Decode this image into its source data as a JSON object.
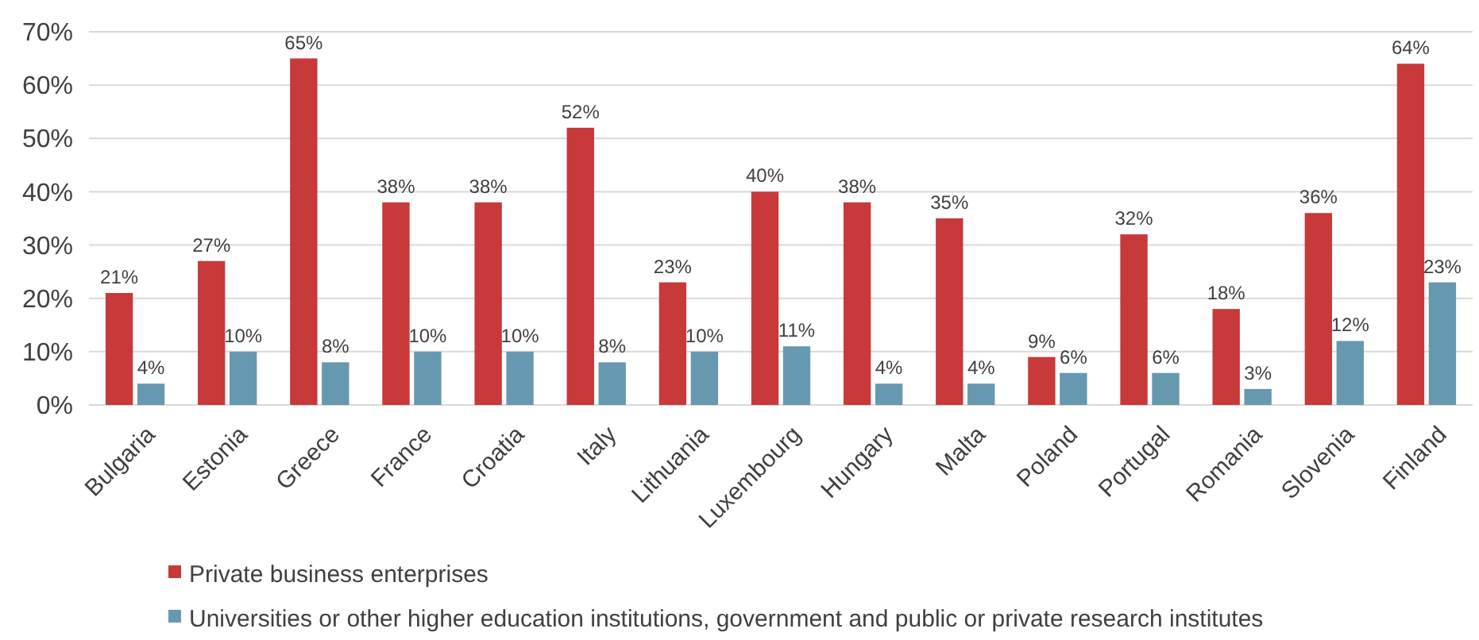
{
  "chart_data": {
    "type": "bar",
    "categories": [
      "Bulgaria",
      "Estonia",
      "Greece",
      "France",
      "Croatia",
      "Italy",
      "Lithuania",
      "Luxembourg",
      "Hungary",
      "Malta",
      "Poland",
      "Portugal",
      "Romania",
      "Slovenia",
      "Finland"
    ],
    "series": [
      {
        "name": "Private business enterprises",
        "color": "#c8393a",
        "values": [
          21,
          27,
          65,
          38,
          38,
          52,
          23,
          40,
          38,
          35,
          9,
          32,
          18,
          36,
          64
        ],
        "value_labels": [
          "21%",
          "27%",
          "65%",
          "38%",
          "38%",
          "52%",
          "23%",
          "40%",
          "38%",
          "35%",
          "9%",
          "32%",
          "18%",
          "36%",
          "64%"
        ]
      },
      {
        "name": "Universities or other higher education institutions, government and public or private research institutes",
        "color": "#6699b0",
        "values": [
          4,
          10,
          8,
          10,
          10,
          8,
          10,
          11,
          4,
          4,
          6,
          6,
          3,
          12,
          23
        ],
        "value_labels": [
          "4%",
          "10%",
          "8%",
          "10%",
          "10%",
          "8%",
          "10%",
          "11%",
          "4%",
          "4%",
          "6%",
          "6%",
          "3%",
          "12%",
          "23%"
        ]
      }
    ],
    "ylim": [
      0,
      70
    ],
    "yticks": [
      {
        "value": 0,
        "label": "0%"
      },
      {
        "value": 10,
        "label": "10%"
      },
      {
        "value": 20,
        "label": "20%"
      },
      {
        "value": 30,
        "label": "30%"
      },
      {
        "value": 40,
        "label": "40%"
      },
      {
        "value": 50,
        "label": "50%"
      },
      {
        "value": 60,
        "label": "60%"
      },
      {
        "value": 70,
        "label": "70%"
      }
    ],
    "grid": "y",
    "legend": "bottom"
  }
}
